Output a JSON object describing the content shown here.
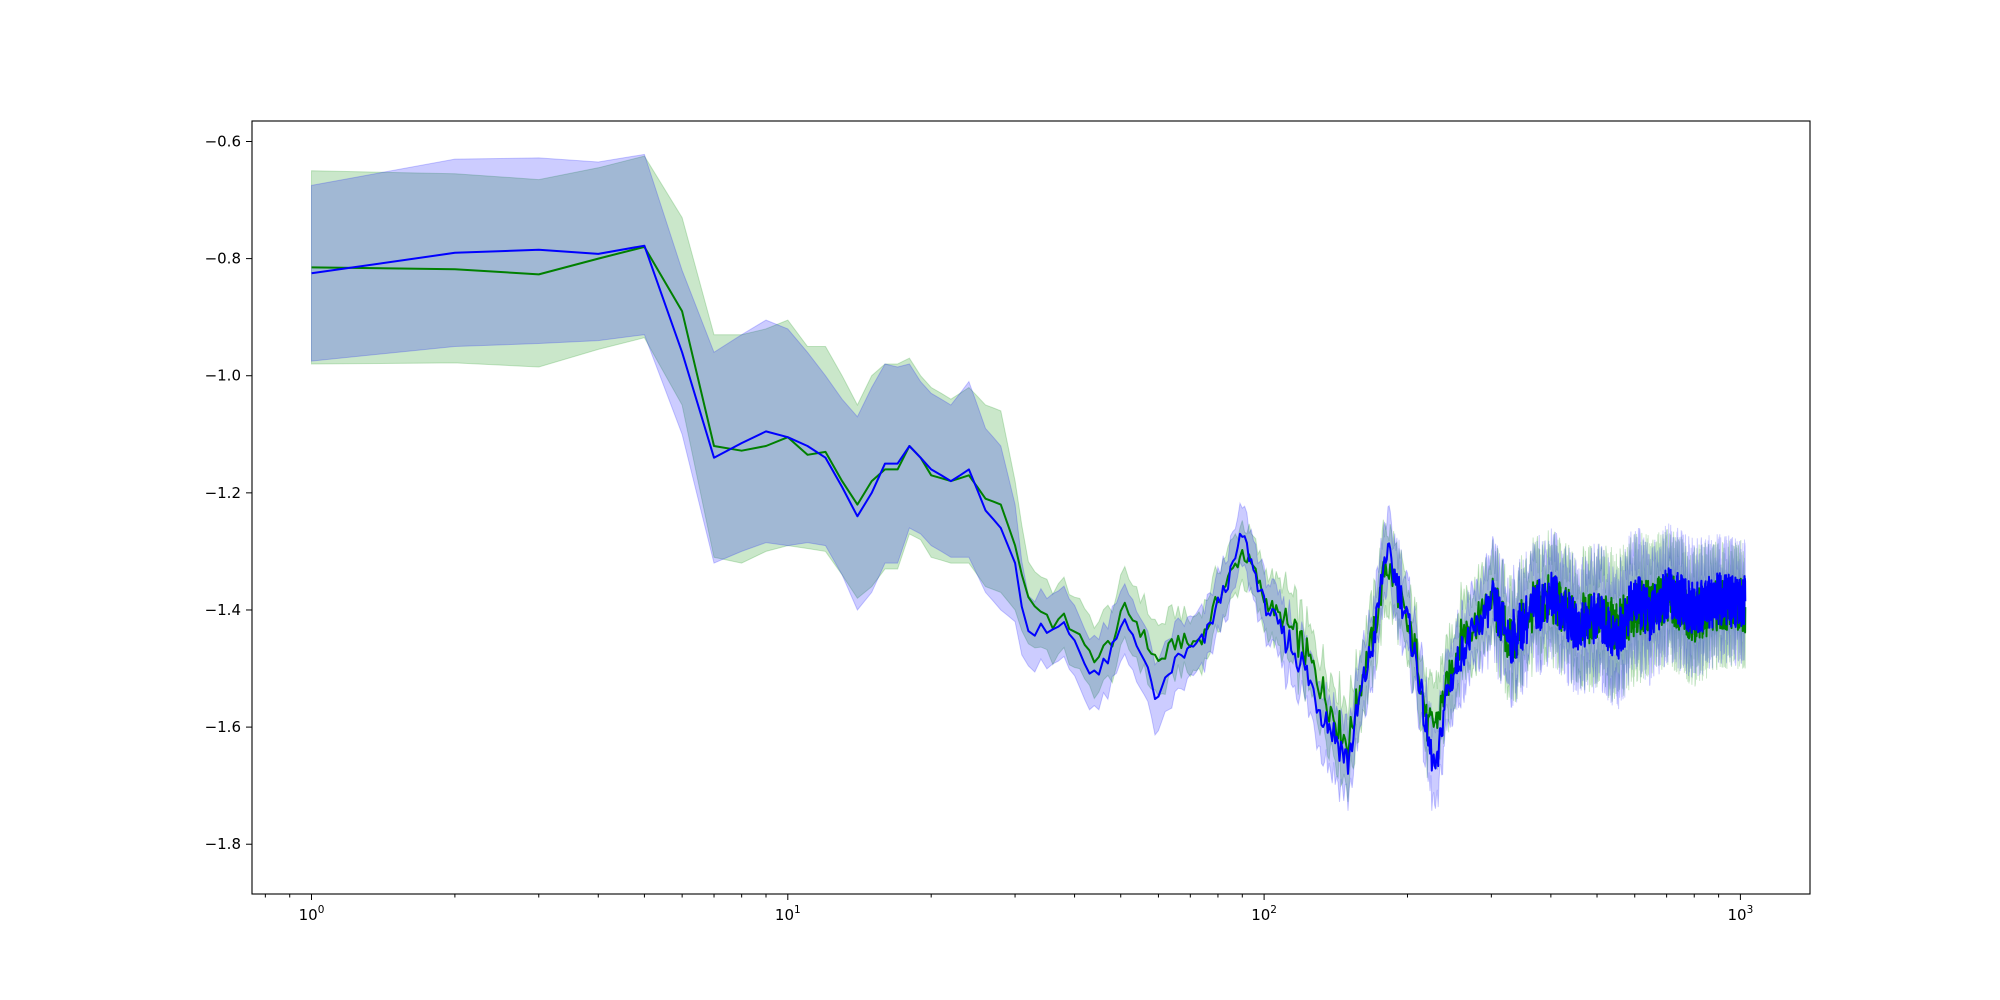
{
  "chart_data": {
    "type": "line",
    "title": "",
    "xlabel": "",
    "ylabel": "",
    "xscale": "log",
    "xlim": [
      0.75,
      1400
    ],
    "ylim": [
      -1.885,
      -0.565
    ],
    "grid": false,
    "legend": "none",
    "y_ticks": [
      {
        "value": -0.6,
        "label": "−0.6"
      },
      {
        "value": -0.8,
        "label": "−0.8"
      },
      {
        "value": -1.0,
        "label": "−1.0"
      },
      {
        "value": -1.2,
        "label": "−1.2"
      },
      {
        "value": -1.4,
        "label": "−1.4"
      },
      {
        "value": -1.6,
        "label": "−1.6"
      },
      {
        "value": -1.8,
        "label": "−1.8"
      }
    ],
    "x_ticks": [
      {
        "value": 1,
        "base": "10",
        "exp": "0"
      },
      {
        "value": 10,
        "base": "10",
        "exp": "1"
      },
      {
        "value": 100,
        "base": "10",
        "exp": "2"
      },
      {
        "value": 1000,
        "base": "10",
        "exp": "3"
      }
    ],
    "series": [
      {
        "color": "#008000",
        "band_color": "#2ca02c",
        "band_opacity": 0.25,
        "x": [
          1,
          2,
          3,
          4,
          5,
          6,
          7,
          8,
          9,
          10,
          11,
          12,
          13,
          14,
          15,
          16,
          17,
          18,
          19,
          20,
          22,
          24,
          26,
          28,
          30,
          32,
          34,
          36,
          38,
          40,
          42,
          45,
          48,
          51,
          54,
          57,
          60,
          63,
          66,
          70,
          75,
          80,
          85,
          90,
          95,
          100,
          110,
          120,
          130,
          140,
          150,
          160,
          170,
          180,
          190,
          200,
          210,
          220,
          230,
          240,
          260,
          280,
          300,
          330,
          360,
          400,
          450,
          500,
          550,
          600,
          650,
          700,
          800,
          900,
          1000,
          1024
        ],
        "y": [
          -0.815,
          -0.818,
          -0.827,
          -0.8,
          -0.78,
          -0.89,
          -1.12,
          -1.128,
          -1.12,
          -1.105,
          -1.135,
          -1.13,
          -1.18,
          -1.22,
          -1.18,
          -1.16,
          -1.16,
          -1.12,
          -1.14,
          -1.17,
          -1.18,
          -1.17,
          -1.21,
          -1.22,
          -1.29,
          -1.38,
          -1.4,
          -1.42,
          -1.42,
          -1.43,
          -1.47,
          -1.48,
          -1.45,
          -1.4,
          -1.42,
          -1.46,
          -1.49,
          -1.47,
          -1.45,
          -1.46,
          -1.44,
          -1.38,
          -1.34,
          -1.3,
          -1.33,
          -1.38,
          -1.42,
          -1.46,
          -1.52,
          -1.58,
          -1.63,
          -1.52,
          -1.44,
          -1.32,
          -1.36,
          -1.43,
          -1.48,
          -1.6,
          -1.59,
          -1.54,
          -1.44,
          -1.42,
          -1.38,
          -1.46,
          -1.4,
          -1.38,
          -1.42,
          -1.41,
          -1.43,
          -1.4,
          -1.39,
          -1.38,
          -1.41,
          -1.39,
          -1.39,
          -1.395
        ],
        "upper": [
          -0.65,
          -0.655,
          -0.665,
          -0.645,
          -0.625,
          -0.73,
          -0.93,
          -0.93,
          -0.92,
          -0.905,
          -0.95,
          -0.95,
          -1.0,
          -1.05,
          -1.0,
          -0.98,
          -0.98,
          -0.97,
          -1.0,
          -1.02,
          -1.04,
          -1.02,
          -1.05,
          -1.06,
          -1.18,
          -1.32,
          -1.34,
          -1.36,
          -1.36,
          -1.37,
          -1.41,
          -1.42,
          -1.39,
          -1.34,
          -1.36,
          -1.4,
          -1.43,
          -1.41,
          -1.4,
          -1.42,
          -1.39,
          -1.33,
          -1.29,
          -1.25,
          -1.28,
          -1.33,
          -1.36,
          -1.41,
          -1.47,
          -1.52,
          -1.56,
          -1.46,
          -1.38,
          -1.25,
          -1.3,
          -1.37,
          -1.42,
          -1.54,
          -1.52,
          -1.48,
          -1.38,
          -1.36,
          -1.32,
          -1.39,
          -1.33,
          -1.31,
          -1.35,
          -1.33,
          -1.35,
          -1.32,
          -1.32,
          -1.31,
          -1.34,
          -1.33,
          -1.33,
          -1.34
        ],
        "lower": [
          -0.98,
          -0.978,
          -0.985,
          -0.955,
          -0.935,
          -1.05,
          -1.31,
          -1.32,
          -1.3,
          -1.29,
          -1.295,
          -1.3,
          -1.34,
          -1.38,
          -1.36,
          -1.33,
          -1.33,
          -1.27,
          -1.28,
          -1.31,
          -1.32,
          -1.32,
          -1.36,
          -1.37,
          -1.4,
          -1.46,
          -1.46,
          -1.48,
          -1.48,
          -1.49,
          -1.53,
          -1.54,
          -1.51,
          -1.46,
          -1.48,
          -1.52,
          -1.55,
          -1.53,
          -1.5,
          -1.51,
          -1.49,
          -1.43,
          -1.39,
          -1.35,
          -1.38,
          -1.43,
          -1.48,
          -1.52,
          -1.58,
          -1.64,
          -1.7,
          -1.58,
          -1.5,
          -1.39,
          -1.42,
          -1.49,
          -1.54,
          -1.66,
          -1.66,
          -1.6,
          -1.5,
          -1.48,
          -1.44,
          -1.53,
          -1.47,
          -1.45,
          -1.49,
          -1.49,
          -1.51,
          -1.48,
          -1.46,
          -1.45,
          -1.48,
          -1.45,
          -1.45,
          -1.45
        ]
      },
      {
        "color": "#0000ff",
        "band_color": "#0000ff",
        "band_opacity": 0.2,
        "x": [
          1,
          2,
          3,
          4,
          5,
          6,
          7,
          8,
          9,
          10,
          11,
          12,
          13,
          14,
          15,
          16,
          17,
          18,
          19,
          20,
          22,
          24,
          26,
          28,
          30,
          32,
          34,
          36,
          38,
          40,
          42,
          45,
          48,
          51,
          54,
          57,
          60,
          63,
          66,
          70,
          75,
          80,
          85,
          90,
          95,
          100,
          110,
          120,
          130,
          140,
          150,
          160,
          170,
          180,
          190,
          200,
          210,
          220,
          230,
          240,
          260,
          280,
          300,
          330,
          360,
          400,
          450,
          500,
          550,
          600,
          650,
          700,
          800,
          900,
          1000,
          1024
        ],
        "y": [
          -0.825,
          -0.79,
          -0.785,
          -0.792,
          -0.778,
          -0.96,
          -1.14,
          -1.115,
          -1.095,
          -1.105,
          -1.12,
          -1.14,
          -1.19,
          -1.24,
          -1.2,
          -1.15,
          -1.15,
          -1.12,
          -1.14,
          -1.16,
          -1.18,
          -1.16,
          -1.23,
          -1.26,
          -1.32,
          -1.44,
          -1.42,
          -1.44,
          -1.43,
          -1.45,
          -1.49,
          -1.51,
          -1.47,
          -1.42,
          -1.45,
          -1.51,
          -1.56,
          -1.51,
          -1.48,
          -1.47,
          -1.45,
          -1.39,
          -1.34,
          -1.27,
          -1.33,
          -1.39,
          -1.44,
          -1.49,
          -1.56,
          -1.61,
          -1.66,
          -1.54,
          -1.45,
          -1.3,
          -1.35,
          -1.42,
          -1.5,
          -1.62,
          -1.68,
          -1.55,
          -1.47,
          -1.43,
          -1.39,
          -1.45,
          -1.41,
          -1.37,
          -1.43,
          -1.41,
          -1.45,
          -1.38,
          -1.41,
          -1.37,
          -1.4,
          -1.38,
          -1.39,
          -1.385
        ],
        "upper": [
          -0.675,
          -0.63,
          -0.628,
          -0.635,
          -0.622,
          -0.82,
          -0.96,
          -0.93,
          -0.905,
          -0.92,
          -0.96,
          -1.0,
          -1.04,
          -1.07,
          -1.02,
          -0.98,
          -0.985,
          -0.98,
          -1.01,
          -1.03,
          -1.05,
          -1.01,
          -1.09,
          -1.12,
          -1.22,
          -1.38,
          -1.36,
          -1.38,
          -1.37,
          -1.39,
          -1.43,
          -1.45,
          -1.41,
          -1.36,
          -1.39,
          -1.45,
          -1.5,
          -1.45,
          -1.42,
          -1.42,
          -1.4,
          -1.34,
          -1.29,
          -1.22,
          -1.28,
          -1.34,
          -1.39,
          -1.44,
          -1.51,
          -1.56,
          -1.6,
          -1.48,
          -1.39,
          -1.24,
          -1.29,
          -1.36,
          -1.44,
          -1.56,
          -1.62,
          -1.49,
          -1.41,
          -1.37,
          -1.32,
          -1.38,
          -1.34,
          -1.3,
          -1.36,
          -1.33,
          -1.37,
          -1.3,
          -1.34,
          -1.3,
          -1.33,
          -1.32,
          -1.33,
          -1.33
        ],
        "lower": [
          -0.975,
          -0.95,
          -0.945,
          -0.94,
          -0.93,
          -1.1,
          -1.32,
          -1.3,
          -1.285,
          -1.29,
          -1.285,
          -1.29,
          -1.34,
          -1.4,
          -1.37,
          -1.32,
          -1.32,
          -1.26,
          -1.27,
          -1.29,
          -1.31,
          -1.31,
          -1.37,
          -1.4,
          -1.42,
          -1.5,
          -1.48,
          -1.5,
          -1.49,
          -1.51,
          -1.55,
          -1.57,
          -1.53,
          -1.48,
          -1.51,
          -1.57,
          -1.62,
          -1.57,
          -1.54,
          -1.52,
          -1.5,
          -1.44,
          -1.39,
          -1.32,
          -1.38,
          -1.44,
          -1.5,
          -1.54,
          -1.62,
          -1.68,
          -1.72,
          -1.6,
          -1.51,
          -1.36,
          -1.41,
          -1.48,
          -1.56,
          -1.68,
          -1.75,
          -1.61,
          -1.53,
          -1.49,
          -1.46,
          -1.52,
          -1.48,
          -1.44,
          -1.5,
          -1.49,
          -1.53,
          -1.46,
          -1.48,
          -1.44,
          -1.47,
          -1.44,
          -1.45,
          -1.44
        ]
      }
    ]
  }
}
